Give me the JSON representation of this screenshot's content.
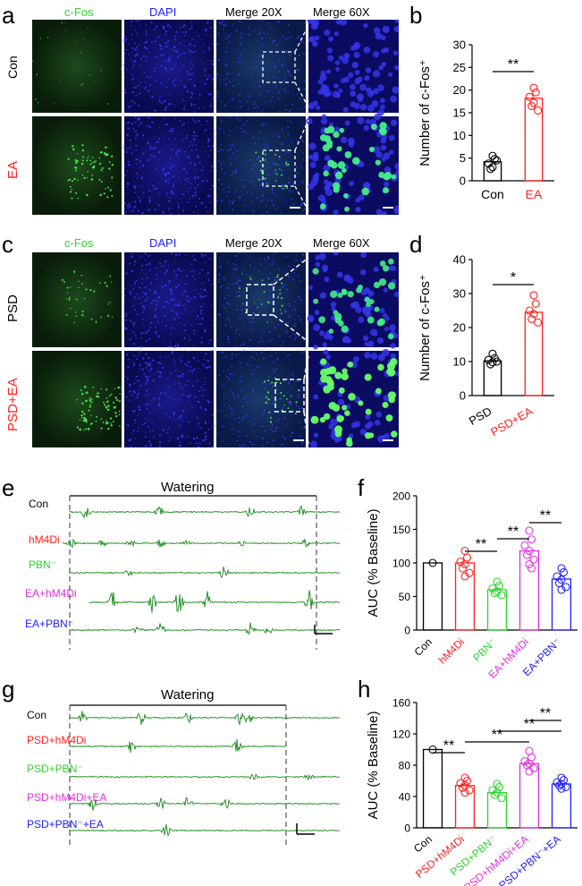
{
  "panels": {
    "a": "a",
    "b": "b",
    "c": "c",
    "d": "d",
    "e": "e",
    "f": "f",
    "g": "g",
    "h": "h"
  },
  "colors": {
    "green": "#2fd42f",
    "blue": "#2121ff",
    "red": "#ff2020",
    "magenta": "#e030e0",
    "black": "#000000"
  },
  "a": {
    "columns": [
      "c-Fos",
      "DAPI",
      "Merge 20X",
      "Merge 60X"
    ],
    "rows": [
      "Con",
      "EA"
    ]
  },
  "c": {
    "columns": [
      "c-Fos",
      "DAPI",
      "Merge 20X",
      "Merge 60X"
    ],
    "rows": [
      "PSD",
      "PSD+EA"
    ]
  },
  "e": {
    "title": "Watering",
    "traces": [
      "Con",
      "hM4Di",
      "PBN⁻",
      "EA+hM4Di",
      "EA+PBN⁻"
    ]
  },
  "g": {
    "title": "Watering",
    "traces": [
      "Con",
      "PSD+hM4Di",
      "PSD+PBN⁻",
      "PSD+hM4Di+EA",
      "PSD+PBN⁻+EA"
    ]
  },
  "chart_data": [
    {
      "panel": "b",
      "type": "bar",
      "ylabel": "Number of c-Fos⁺",
      "ylim": [
        0,
        30
      ],
      "yticks": [
        0,
        5,
        10,
        15,
        20,
        25,
        30
      ],
      "categories": [
        "Con",
        "EA"
      ],
      "values": [
        4.2,
        18.2
      ],
      "points": [
        [
          5.5,
          4.8,
          3.8,
          3.0,
          2.6,
          4.5
        ],
        [
          20.5,
          19.5,
          18.5,
          17.2,
          16.5,
          15.5
        ]
      ],
      "colors": [
        "#000000",
        "#ff2020"
      ],
      "significance": [
        {
          "from": 0,
          "to": 1,
          "label": "**"
        }
      ]
    },
    {
      "panel": "d",
      "type": "bar",
      "ylabel": "Number of c-Fos⁺",
      "ylim": [
        0,
        40
      ],
      "yticks": [
        0,
        10,
        20,
        30,
        40
      ],
      "categories": [
        "PSD",
        "PSD+EA"
      ],
      "values": [
        10.2,
        24.5
      ],
      "points": [
        [
          12.3,
          11.0,
          10.5,
          9.8,
          9.2,
          10.0
        ],
        [
          29.5,
          27.0,
          25.0,
          24.0,
          22.5,
          21.5
        ]
      ],
      "colors": [
        "#000000",
        "#ff2020"
      ],
      "significance": [
        {
          "from": 0,
          "to": 1,
          "label": "*"
        }
      ]
    },
    {
      "panel": "f",
      "type": "bar",
      "ylabel": "AUC (% Baseline)",
      "ylim": [
        0,
        200
      ],
      "yticks": [
        0,
        50,
        100,
        150,
        200
      ],
      "categories": [
        "Con",
        "hM4Di",
        "PBN⁻",
        "EA+hM4Di",
        "EA+PBN⁻"
      ],
      "values": [
        100,
        100,
        60,
        118,
        76
      ],
      "points": [
        [
          100
        ],
        [
          118,
          108,
          102,
          98,
          92,
          85,
          80
        ],
        [
          72,
          66,
          62,
          58,
          55,
          52
        ],
        [
          148,
          135,
          126,
          118,
          112,
          105,
          98,
          92
        ],
        [
          92,
          86,
          80,
          75,
          70,
          64,
          60
        ]
      ],
      "colors": [
        "#000000",
        "#ff2020",
        "#2fd42f",
        "#e030e0",
        "#2121ff"
      ],
      "significance": [
        {
          "from": 1,
          "to": 2,
          "label": "**"
        },
        {
          "from": 2,
          "to": 3,
          "label": "**"
        },
        {
          "from": 3,
          "to": 4,
          "label": "**"
        }
      ]
    },
    {
      "panel": "h",
      "type": "bar",
      "ylabel": "AUC (% Baseline)",
      "ylim": [
        0,
        160
      ],
      "yticks": [
        0,
        40,
        80,
        120,
        160
      ],
      "categories": [
        "Con",
        "PSD+hM4Di",
        "PSD+PBN⁻",
        "PSD+hM4Di+EA",
        "PSD+PBN⁻+EA"
      ],
      "values": [
        100,
        54,
        45,
        82,
        56
      ],
      "points": [
        [
          100
        ],
        [
          64,
          60,
          57,
          54,
          51,
          48,
          45
        ],
        [
          56,
          52,
          48,
          45,
          42,
          38
        ],
        [
          98,
          90,
          85,
          82,
          80,
          76,
          72
        ],
        [
          64,
          61,
          58,
          56,
          54,
          52,
          50
        ]
      ],
      "colors": [
        "#000000",
        "#ff2020",
        "#2fd42f",
        "#e030e0",
        "#2121ff"
      ],
      "significance": [
        {
          "from": 0,
          "to": 1,
          "label": "**"
        },
        {
          "from": 1,
          "to": 3,
          "label": "**"
        },
        {
          "from": 2,
          "to": 4,
          "label": "**"
        },
        {
          "from": 3,
          "to": 4,
          "label": "**"
        }
      ]
    }
  ]
}
